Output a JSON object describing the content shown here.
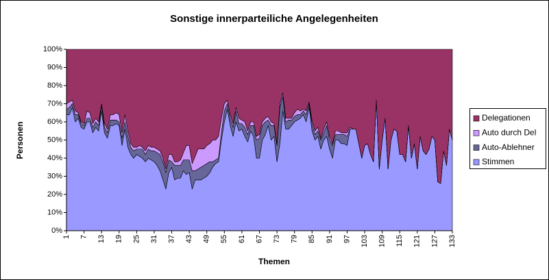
{
  "chart_data": {
    "type": "stacked_area",
    "title": "Sonstige innerparteiliche Angelegenheiten",
    "x_label": "Themen",
    "y_label": "Personen",
    "x": [
      1,
      2,
      3,
      4,
      5,
      6,
      7,
      8,
      9,
      10,
      11,
      12,
      13,
      14,
      15,
      16,
      17,
      18,
      19,
      20,
      21,
      22,
      23,
      24,
      25,
      26,
      27,
      28,
      29,
      30,
      31,
      32,
      33,
      34,
      35,
      36,
      37,
      38,
      39,
      40,
      41,
      42,
      43,
      44,
      45,
      46,
      47,
      48,
      49,
      50,
      51,
      52,
      53,
      54,
      55,
      56,
      57,
      58,
      59,
      60,
      61,
      62,
      63,
      64,
      65,
      66,
      67,
      68,
      69,
      70,
      71,
      72,
      73,
      74,
      75,
      76,
      77,
      78,
      79,
      80,
      81,
      82,
      83,
      84,
      85,
      86,
      87,
      88,
      89,
      90,
      91,
      92,
      93,
      94,
      95,
      96,
      97,
      98,
      99,
      100,
      101,
      102,
      103,
      104,
      105,
      106,
      107,
      108,
      109,
      110,
      111,
      112,
      113,
      114,
      115,
      116,
      117,
      118,
      119,
      120,
      121,
      122,
      123,
      124,
      125,
      126,
      127,
      128,
      129,
      130,
      131,
      132,
      133
    ],
    "xlim": [
      1,
      133
    ],
    "xticks": [
      1,
      7,
      13,
      19,
      25,
      31,
      37,
      43,
      49,
      55,
      61,
      67,
      73,
      79,
      85,
      91,
      97,
      103,
      109,
      115,
      121,
      127,
      133
    ],
    "ylim": [
      0,
      100
    ],
    "yticks": [
      {
        "value": 0,
        "label": "0%"
      },
      {
        "value": 10,
        "label": "10%"
      },
      {
        "value": 20,
        "label": "20%"
      },
      {
        "value": 30,
        "label": "30%"
      },
      {
        "value": 40,
        "label": "40%"
      },
      {
        "value": 50,
        "label": "50%"
      },
      {
        "value": 60,
        "label": "60%"
      },
      {
        "value": 70,
        "label": "70%"
      },
      {
        "value": 80,
        "label": "80%"
      },
      {
        "value": 90,
        "label": "90%"
      },
      {
        "value": 100,
        "label": "100%"
      }
    ],
    "legend": "right",
    "series": [
      {
        "name": "Stimmen",
        "color": "#9999ff",
        "values": [
          64,
          64,
          68,
          60,
          62,
          57,
          56,
          60,
          60,
          54,
          57,
          55,
          66,
          54,
          51,
          58,
          58,
          59,
          58,
          47,
          56,
          46,
          42,
          40,
          42,
          41,
          40,
          38,
          40,
          39,
          38,
          36,
          33,
          28,
          23,
          32,
          35,
          28,
          29,
          29,
          33,
          31,
          32,
          23,
          28,
          28,
          28,
          29,
          30,
          32,
          35,
          37,
          38,
          50,
          60,
          67,
          58,
          52,
          60,
          55,
          56,
          52,
          49,
          55,
          52,
          40,
          40,
          50,
          53,
          58,
          50,
          52,
          38,
          48,
          66,
          56,
          56,
          58,
          60,
          61,
          62,
          64,
          60,
          68,
          55,
          50,
          52,
          45,
          50,
          52,
          45,
          40,
          50,
          50,
          48,
          48,
          47,
          56,
          56,
          56,
          48,
          40,
          47,
          48,
          42,
          38,
          72,
          34,
          50,
          62,
          34,
          50,
          56,
          55,
          42,
          42,
          38,
          58,
          40,
          48,
          34,
          52,
          44,
          42,
          45,
          52,
          50,
          27,
          26,
          44,
          36,
          56,
          50
        ]
      },
      {
        "name": "Auto-Ablehner",
        "color": "#666699",
        "values": [
          3,
          4,
          2,
          4,
          2,
          2,
          2,
          2,
          2,
          3,
          3,
          3,
          3,
          3,
          3,
          3,
          3,
          2,
          2,
          4,
          4,
          6,
          4,
          4,
          3,
          4,
          5,
          4,
          5,
          5,
          6,
          7,
          9,
          10,
          9,
          7,
          3,
          8,
          7,
          7,
          6,
          8,
          7,
          10,
          5,
          6,
          7,
          7,
          7,
          6,
          3,
          2,
          2,
          4,
          6,
          3,
          4,
          5,
          6,
          4,
          3,
          5,
          4,
          3,
          6,
          10,
          11,
          8,
          7,
          3,
          8,
          6,
          9,
          20,
          8,
          4,
          5,
          3,
          3,
          3,
          2,
          2,
          4,
          2,
          4,
          3,
          3,
          5,
          4,
          6,
          5,
          7,
          3,
          3,
          5,
          5,
          5,
          0,
          0,
          0,
          0,
          0,
          0,
          0,
          0,
          0,
          0,
          0,
          0,
          0,
          0,
          0,
          0,
          0,
          0,
          0,
          0,
          0,
          0,
          0,
          0,
          0,
          0,
          0,
          0,
          0,
          0,
          0,
          0,
          0,
          0,
          0,
          0
        ]
      },
      {
        "name": "Auto durch Del",
        "color": "#cc99ff",
        "values": [
          3,
          3,
          2,
          2,
          1,
          1,
          1,
          4,
          3,
          2,
          2,
          2,
          1,
          2,
          2,
          3,
          3,
          4,
          4,
          3,
          4,
          3,
          2,
          2,
          1,
          2,
          1,
          2,
          2,
          2,
          2,
          2,
          2,
          2,
          2,
          3,
          4,
          2,
          2,
          3,
          4,
          8,
          8,
          4,
          8,
          11,
          10,
          9,
          10,
          10,
          12,
          11,
          12,
          8,
          4,
          2,
          2,
          2,
          2,
          3,
          2,
          3,
          2,
          2,
          2,
          2,
          2,
          2,
          2,
          2,
          2,
          1,
          1,
          2,
          2,
          2,
          1,
          1,
          2,
          3,
          2,
          1,
          2,
          1,
          2,
          2,
          2,
          1,
          2,
          2,
          2,
          1,
          2,
          2,
          1,
          1,
          2,
          1,
          0,
          0,
          0,
          0,
          0,
          0,
          0,
          0,
          0,
          0,
          0,
          0,
          0,
          0,
          0,
          0,
          0,
          0,
          0,
          0,
          0,
          0,
          0,
          0,
          0,
          0,
          0,
          0,
          0,
          0,
          0,
          0,
          0,
          0,
          0
        ]
      },
      {
        "name": "Delegationen",
        "color": "#993366",
        "values": [
          30,
          29,
          28,
          34,
          35,
          40,
          41,
          34,
          35,
          41,
          38,
          40,
          30,
          41,
          44,
          36,
          36,
          35,
          36,
          46,
          36,
          45,
          52,
          54,
          54,
          53,
          54,
          56,
          53,
          54,
          54,
          55,
          56,
          60,
          66,
          58,
          58,
          62,
          62,
          61,
          57,
          53,
          53,
          63,
          59,
          55,
          55,
          55,
          53,
          52,
          50,
          50,
          48,
          38,
          30,
          28,
          36,
          41,
          32,
          38,
          39,
          40,
          45,
          40,
          40,
          48,
          47,
          40,
          38,
          37,
          40,
          41,
          52,
          30,
          24,
          38,
          38,
          38,
          35,
          33,
          34,
          33,
          34,
          29,
          39,
          45,
          43,
          49,
          44,
          40,
          48,
          52,
          45,
          45,
          46,
          46,
          46,
          43,
          44,
          44,
          52,
          60,
          53,
          52,
          58,
          62,
          28,
          66,
          50,
          38,
          66,
          50,
          44,
          45,
          58,
          58,
          62,
          42,
          60,
          52,
          66,
          48,
          56,
          58,
          55,
          48,
          50,
          73,
          74,
          56,
          64,
          44,
          50
        ]
      }
    ]
  }
}
